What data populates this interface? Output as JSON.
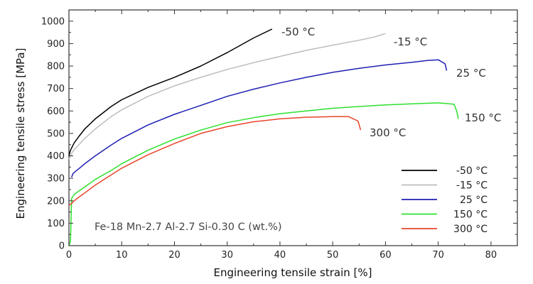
{
  "chart_data": {
    "type": "line",
    "xlabel": "Engineering tensile strain [%]",
    "ylabel": "Engineering tensile stress [MPa]",
    "xlim": [
      0,
      85
    ],
    "ylim": [
      0,
      1050
    ],
    "xticks": [
      "0",
      "10",
      "20",
      "30",
      "40",
      "50",
      "60",
      "70",
      "80"
    ],
    "yticks": [
      "0",
      "100",
      "200",
      "300",
      "400",
      "500",
      "600",
      "700",
      "800",
      "900",
      "1000"
    ],
    "grid": false,
    "legend_position": "bottom-right",
    "annotation": "Fe-18 Mn-2.7 Al-2.7 Si-0.30 C (wt.%)",
    "series": [
      {
        "name": "-50 °C",
        "color": "#000000",
        "x": [
          0,
          0.3,
          0.6,
          1,
          2,
          3,
          5,
          8,
          10,
          15,
          20,
          25,
          30,
          35,
          38.5
        ],
        "y": [
          400,
          425,
          440,
          458,
          490,
          520,
          565,
          620,
          650,
          705,
          750,
          800,
          860,
          925,
          965
        ]
      },
      {
        "name": "-15 °C",
        "color": "#bdbdbd",
        "x": [
          0,
          0.3,
          0.6,
          1,
          2,
          3,
          5,
          8,
          10,
          15,
          20,
          25,
          30,
          35,
          40,
          45,
          50,
          55,
          58,
          60
        ],
        "y": [
          385,
          400,
          415,
          428,
          452,
          478,
          520,
          575,
          605,
          665,
          712,
          750,
          785,
          815,
          843,
          870,
          893,
          915,
          930,
          945
        ]
      },
      {
        "name": "25 °C",
        "color": "#1f1fb4",
        "x": [
          0.5,
          0.8,
          1.2,
          2,
          3,
          5,
          8,
          10,
          15,
          20,
          25,
          30,
          35,
          40,
          45,
          50,
          55,
          60,
          65,
          68,
          70,
          71.3,
          71.6
        ],
        "y": [
          305,
          322,
          330,
          345,
          365,
          400,
          448,
          478,
          538,
          585,
          625,
          665,
          697,
          725,
          750,
          772,
          790,
          805,
          817,
          825,
          828,
          810,
          780
        ]
      },
      {
        "name": "150 °C",
        "color": "#2ee02e",
        "x": [
          0,
          0.3,
          0.5,
          1,
          2,
          3,
          5,
          8,
          10,
          15,
          20,
          25,
          30,
          35,
          40,
          45,
          50,
          55,
          60,
          65,
          70,
          73,
          73.5,
          73.8
        ],
        "y": [
          0,
          20,
          210,
          228,
          245,
          262,
          295,
          335,
          365,
          425,
          475,
          515,
          548,
          570,
          588,
          600,
          612,
          620,
          627,
          632,
          636,
          630,
          600,
          565
        ]
      },
      {
        "name": "300 °C",
        "color": "#e8452a",
        "x": [
          0,
          0.5,
          1,
          2,
          3,
          5,
          8,
          10,
          15,
          20,
          25,
          30,
          35,
          40,
          45,
          50,
          53,
          54.8,
          55.3
        ],
        "y": [
          180,
          188,
          200,
          218,
          235,
          270,
          315,
          345,
          405,
          455,
          500,
          530,
          552,
          565,
          572,
          575,
          575,
          555,
          515
        ]
      }
    ],
    "curve_labels": [
      "-50 °C",
      "-15 °C",
      "25 °C",
      "150 °C",
      "300 °C"
    ]
  }
}
